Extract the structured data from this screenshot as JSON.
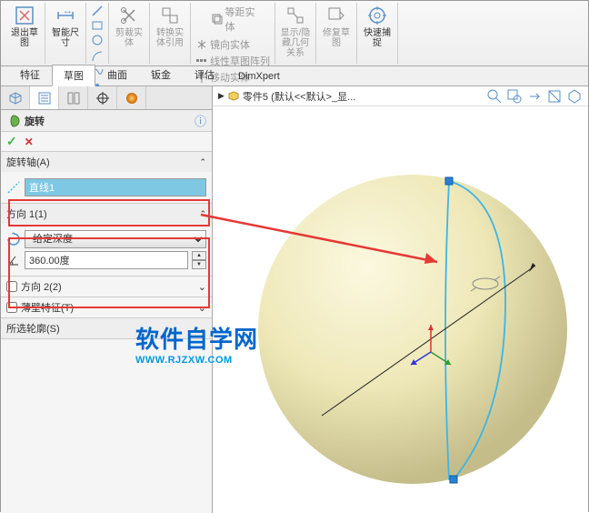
{
  "ribbon": {
    "exit_sketch": "退出草\n图",
    "smart_dim": "智能尺\n寸",
    "trim": "剪裁实\n体",
    "convert": "转换实\n体引用",
    "offset": "等距实\n体",
    "mirror": "镜向实体",
    "linear": "线性草图阵列",
    "move": "移动实体",
    "show_hide": "显示/隐\n藏几何\n关系",
    "repair": "修复草\n图",
    "quick_snap": "快速捕\n捉"
  },
  "tabs": {
    "items": [
      "特征",
      "草图",
      "曲面",
      "钣金",
      "评估",
      "DimXpert"
    ],
    "active": 1
  },
  "panel": {
    "title": "旋转",
    "sec_axis": "旋转轴(A)",
    "axis_val": "直线1",
    "sec_dir1": "方向 1(1)",
    "depth_sel": "给定深度",
    "depth_val": "360.00度",
    "sec_dir2": "方向 2(2)",
    "sec_thin": "薄壁特征(T)",
    "sec_contour": "所选轮廓(S)"
  },
  "tree": {
    "root": "零件5 (默认<<默认>_显..."
  },
  "watermark": {
    "cn": "软件自学网",
    "en": "WWW.RJZXW.COM"
  },
  "colors": {
    "sphere_light": "#f2edc8",
    "sphere_dark": "#c9c49a",
    "curve": "#3db5e6",
    "axis": "#222",
    "arrow": "#e53935",
    "handle": "#2a7fd4"
  }
}
